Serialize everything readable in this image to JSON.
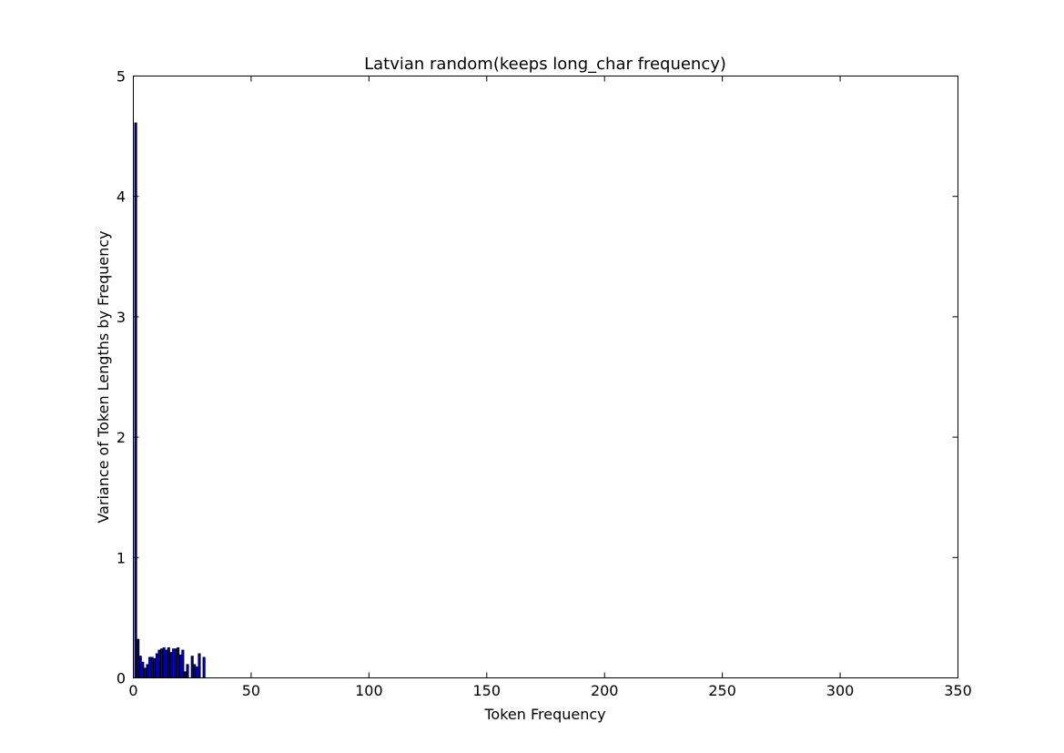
{
  "chart_data": {
    "type": "bar",
    "title": "Latvian random(keeps long_char frequency)",
    "xlabel": "Token Frequency",
    "ylabel": "Variance of Token Lengths by Frequency",
    "xlim": [
      0,
      350
    ],
    "ylim": [
      0,
      5
    ],
    "xticks": [
      0,
      50,
      100,
      150,
      200,
      250,
      300,
      350
    ],
    "yticks": [
      0,
      1,
      2,
      3,
      4,
      5
    ],
    "grid": false,
    "bar_color": "#0000ff",
    "bar_edge_color": "#000000",
    "bar_width": 0.8,
    "x": [
      1,
      2,
      3,
      4,
      5,
      6,
      7,
      8,
      9,
      10,
      11,
      12,
      13,
      14,
      15,
      16,
      17,
      18,
      19,
      20,
      21,
      22,
      23,
      24,
      25,
      26,
      27,
      28,
      29,
      30,
      31
    ],
    "values": [
      4.61,
      0.32,
      0.18,
      0.13,
      0.08,
      0.11,
      0.17,
      0.17,
      0.16,
      0.2,
      0.23,
      0.24,
      0.25,
      0.23,
      0.25,
      0.21,
      0.24,
      0.24,
      0.25,
      0.19,
      0.23,
      0.05,
      0.11,
      0.0,
      0.18,
      0.11,
      0.09,
      0.2,
      0.0,
      0.17,
      0.0
    ]
  }
}
